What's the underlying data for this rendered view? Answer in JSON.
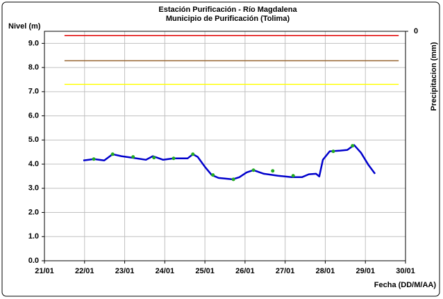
{
  "chart_data": {
    "type": "line",
    "title": "Estación Purificación - Río Magdalena",
    "subtitle": "Municipio de Purificación (Tolima)",
    "ylabel": "Nivel (m)",
    "y2label": "Precipitacion (mm)",
    "xlabel": "Fecha (DD/M/AA)",
    "xlim": [
      21,
      30
    ],
    "xticks": [
      {
        "value": 21,
        "label": "21/01"
      },
      {
        "value": 22,
        "label": "22/01"
      },
      {
        "value": 23,
        "label": "23/01"
      },
      {
        "value": 24,
        "label": "24/01"
      },
      {
        "value": 25,
        "label": "25/01"
      },
      {
        "value": 26,
        "label": "26/01"
      },
      {
        "value": 27,
        "label": "27/01"
      },
      {
        "value": 28,
        "label": "28/01"
      },
      {
        "value": 29,
        "label": "29/01"
      },
      {
        "value": 30,
        "label": "30/01"
      }
    ],
    "ylim": [
      0,
      9.5
    ],
    "yticks": [
      {
        "value": 0,
        "label": "0.0"
      },
      {
        "value": 1,
        "label": "1.0"
      },
      {
        "value": 2,
        "label": "2.0"
      },
      {
        "value": 3,
        "label": "3.0"
      },
      {
        "value": 4,
        "label": "4.0"
      },
      {
        "value": 5,
        "label": "5.0"
      },
      {
        "value": 6,
        "label": "6.0"
      },
      {
        "value": 7,
        "label": "7.0"
      },
      {
        "value": 8,
        "label": "8.0"
      },
      {
        "value": 9,
        "label": "9.0"
      }
    ],
    "y2lim": [
      0,
      10
    ],
    "y2_inverted": true,
    "y2ticks": [
      0
    ],
    "grid": true,
    "thresholds": [
      {
        "value": 9.32,
        "color": "#e00000",
        "x": [
          21.5,
          29.83
        ]
      },
      {
        "value": 8.28,
        "color": "#996633",
        "x": [
          21.5,
          29.83
        ]
      },
      {
        "value": 7.3,
        "color": "#ffff00",
        "x": [
          21.5,
          29.83
        ]
      }
    ],
    "series": [
      {
        "color": "#0000cc",
        "x": [
          21.97,
          22.23,
          22.49,
          22.7,
          22.92,
          23.18,
          23.53,
          23.7,
          23.96,
          24.22,
          24.57,
          24.7,
          24.82,
          25.0,
          25.17,
          25.34,
          25.69,
          25.86,
          26.04,
          26.21,
          26.47,
          26.82,
          27.16,
          27.42,
          27.59,
          27.77,
          27.85,
          27.94,
          28.11,
          28.37,
          28.55,
          28.72,
          28.89,
          29.07,
          29.24
        ],
        "values": [
          4.15,
          4.21,
          4.15,
          4.41,
          4.33,
          4.27,
          4.18,
          4.33,
          4.18,
          4.24,
          4.24,
          4.41,
          4.3,
          3.89,
          3.55,
          3.43,
          3.37,
          3.46,
          3.66,
          3.75,
          3.6,
          3.52,
          3.46,
          3.46,
          3.58,
          3.6,
          3.49,
          4.18,
          4.53,
          4.56,
          4.59,
          4.79,
          4.47,
          3.98,
          3.6
        ]
      },
      {
        "color": "#22aa22",
        "marker": true,
        "x": [
          22.23,
          22.7,
          23.21,
          23.73,
          24.22,
          24.7,
          25.2,
          25.71,
          26.21,
          26.69,
          27.2,
          28.2,
          28.68
        ],
        "values": [
          4.21,
          4.41,
          4.3,
          4.27,
          4.24,
          4.41,
          3.55,
          3.37,
          3.75,
          3.72,
          3.52,
          4.53,
          4.76
        ]
      }
    ]
  }
}
